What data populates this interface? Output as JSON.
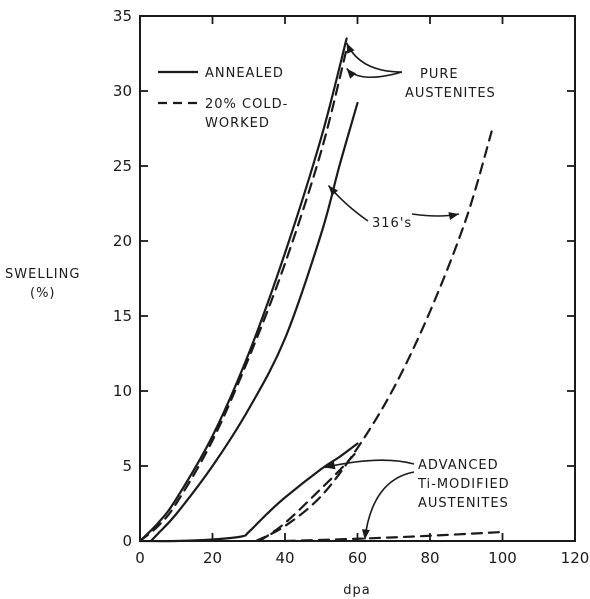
{
  "chart_data": {
    "type": "line",
    "title": "",
    "xlabel": "dpa",
    "ylabel": [
      "SWELLING",
      "(%)"
    ],
    "xlim": [
      0,
      120
    ],
    "ylim": [
      0,
      35
    ],
    "xticks": [
      "0",
      "20",
      "40",
      "60",
      "80",
      "100",
      "120"
    ],
    "yticks": [
      "0",
      "5",
      "10",
      "15",
      "20",
      "25",
      "30",
      "35"
    ],
    "grid": false,
    "legend": {
      "placement": "top-left",
      "entries": [
        {
          "style": "solid",
          "lines": [
            "ANNEALED"
          ]
        },
        {
          "style": "dashed",
          "lines": [
            "20% COLD-",
            "WORKED"
          ]
        }
      ]
    },
    "series": [
      {
        "group": "pure",
        "style": "solid",
        "x": [
          0,
          5,
          10,
          20,
          30,
          40,
          50,
          57
        ],
        "y": [
          0,
          1.2,
          2.8,
          7.0,
          12.5,
          19.2,
          26.9,
          33.5
        ]
      },
      {
        "group": "pure",
        "style": "dashed",
        "x": [
          0,
          5,
          10,
          20,
          30,
          40,
          50,
          57
        ],
        "y": [
          0,
          1.0,
          2.5,
          6.7,
          12.2,
          18.5,
          26.0,
          32.8
        ]
      },
      {
        "group": "316",
        "style": "solid",
        "x": [
          3,
          5,
          10,
          20,
          30,
          40,
          50,
          55,
          60
        ],
        "y": [
          0,
          0.5,
          1.8,
          5.0,
          8.8,
          13.5,
          20.5,
          25.0,
          29.2
        ]
      },
      {
        "group": "316",
        "style": "dashed",
        "x": [
          32,
          40,
          50,
          60,
          70,
          80,
          90,
          97
        ],
        "y": [
          0,
          1.0,
          3.0,
          6.2,
          10.2,
          15.3,
          21.5,
          27.3
        ]
      },
      {
        "group": "ti",
        "style": "solid",
        "x": [
          0,
          10,
          20,
          28,
          30,
          35,
          40,
          50,
          55,
          60
        ],
        "y": [
          0,
          0,
          0.1,
          0.3,
          0.6,
          1.8,
          2.9,
          4.8,
          5.6,
          6.5
        ]
      },
      {
        "group": "ti",
        "style": "dashed",
        "x": [
          33,
          40,
          50,
          55,
          60
        ],
        "y": [
          0,
          1.2,
          3.5,
          4.7,
          6.0
        ]
      },
      {
        "group": "ti",
        "style": "dashed",
        "x": [
          40,
          60,
          80,
          100
        ],
        "y": [
          0,
          0.15,
          0.35,
          0.6
        ]
      }
    ],
    "annotations": [
      {
        "lines": [
          "PURE",
          "AUSTENITES"
        ],
        "pointer_tips": [
          [
            57,
            33.2
          ],
          [
            57,
            31.5
          ]
        ]
      },
      {
        "lines": [
          "316's"
        ],
        "pointer_tips": [
          [
            52,
            23.7
          ],
          [
            88,
            21.8
          ]
        ]
      },
      {
        "lines": [
          "ADVANCED",
          "Ti-MODIFIED",
          "AUSTENITES"
        ],
        "pointer_tips": [
          [
            51,
            4.9
          ],
          [
            62,
            0.1
          ]
        ]
      }
    ]
  }
}
